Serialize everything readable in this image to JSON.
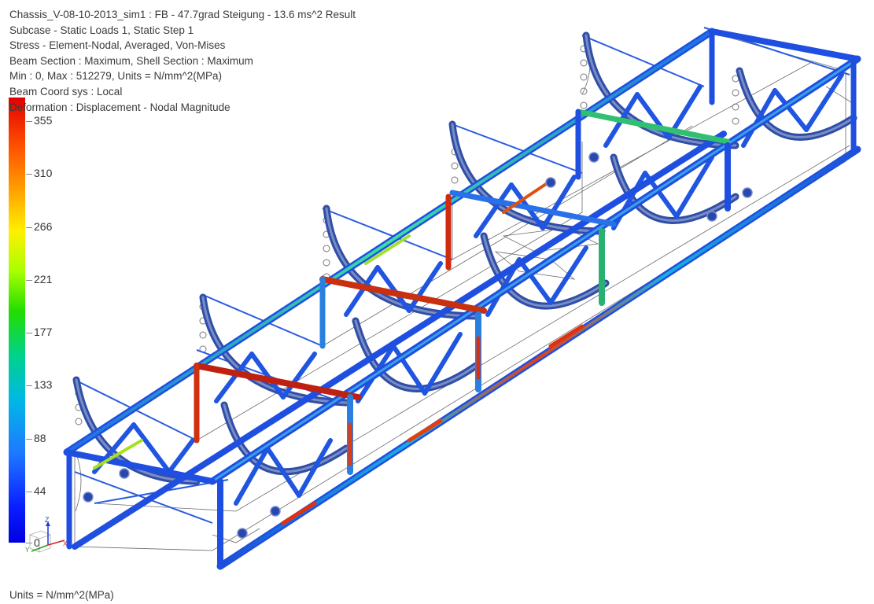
{
  "header": {
    "lines": [
      "Chassis_V-08-10-2013_sim1 : FB - 47.7grad Steigung - 13.6 ms^2 Result",
      "Subcase - Static Loads 1, Static Step 1",
      "Stress - Element-Nodal, Averaged, Von-Mises",
      "Beam Section : Maximum, Shell Section : Maximum",
      "Min : 0, Max : 512279, Units = N/mm^2(MPa)",
      "Beam Coord sys : Local",
      "Deformation : Displacement - Nodal Magnitude"
    ]
  },
  "legend": {
    "labels": [
      "355",
      "310",
      "266",
      "221",
      "177",
      "133",
      "88",
      "44",
      "0"
    ],
    "colors": [
      "#e00000",
      "#ff5000",
      "#ff9a00",
      "#fff000",
      "#a8ff00",
      "#22dd00",
      "#00d28c",
      "#00b8e6",
      "#1e78ff",
      "#0a1eff",
      "#0000e0"
    ]
  },
  "footer": {
    "units": "Units = N/mm^2(MPa)"
  },
  "triad": {
    "z_label": "Z",
    "y_label": "Y",
    "x_label": "X"
  }
}
